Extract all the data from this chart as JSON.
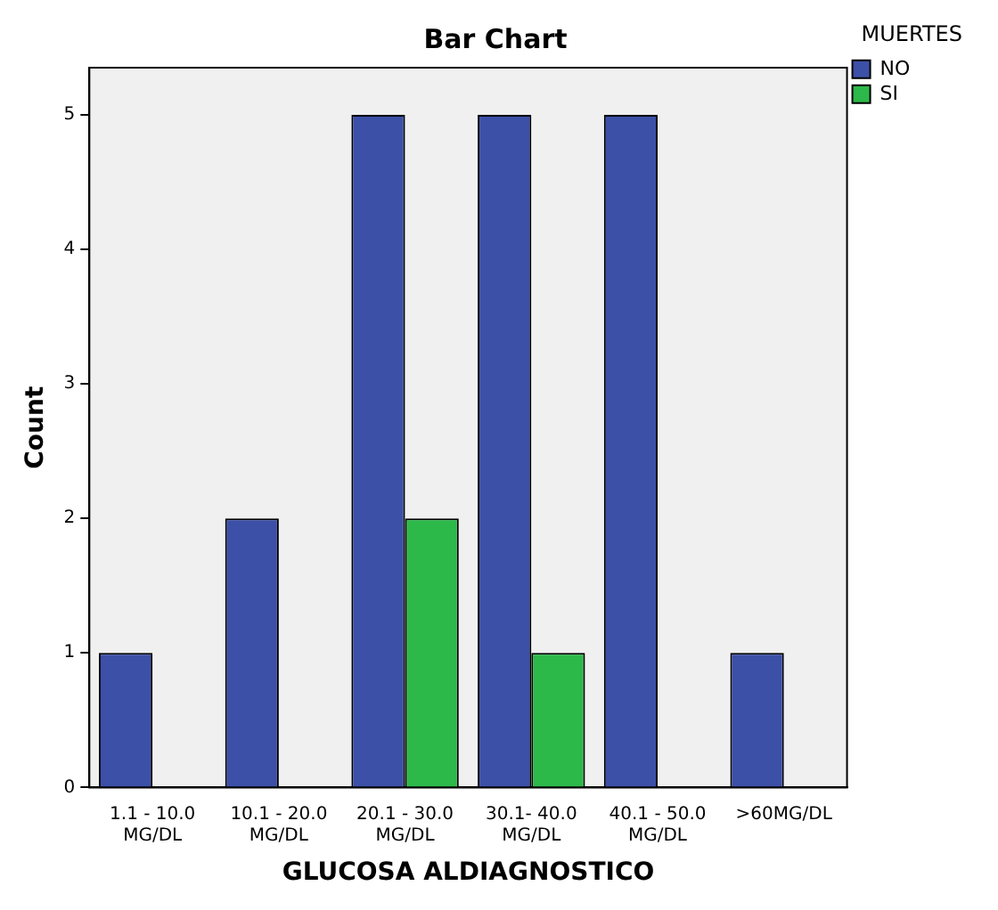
{
  "chart_data": {
    "type": "bar",
    "title": "Bar Chart",
    "xlabel": "GLUCOSA ALDIAGNOSTICO",
    "ylabel": "Count",
    "legend_title": "MUERTES",
    "categories": [
      "1.1 - 10.0 MG/DL",
      "10.1 - 20.0 MG/DL",
      "20.1 - 30.0 MG/DL",
      "30.1- 40.0 MG/DL",
      "40.1 - 50.0 MG/DL",
      ">60MG/DL"
    ],
    "series": [
      {
        "name": "NO",
        "color": "#3c50a8",
        "values": [
          1,
          2,
          5,
          5,
          5,
          1
        ]
      },
      {
        "name": "SI",
        "color": "#2db84a",
        "values": [
          null,
          null,
          2,
          1,
          null,
          null
        ]
      }
    ],
    "ylim": [
      0,
      5.35
    ],
    "yticks": [
      0,
      1,
      2,
      3,
      4,
      5
    ],
    "grid": false,
    "legend": "top right"
  }
}
